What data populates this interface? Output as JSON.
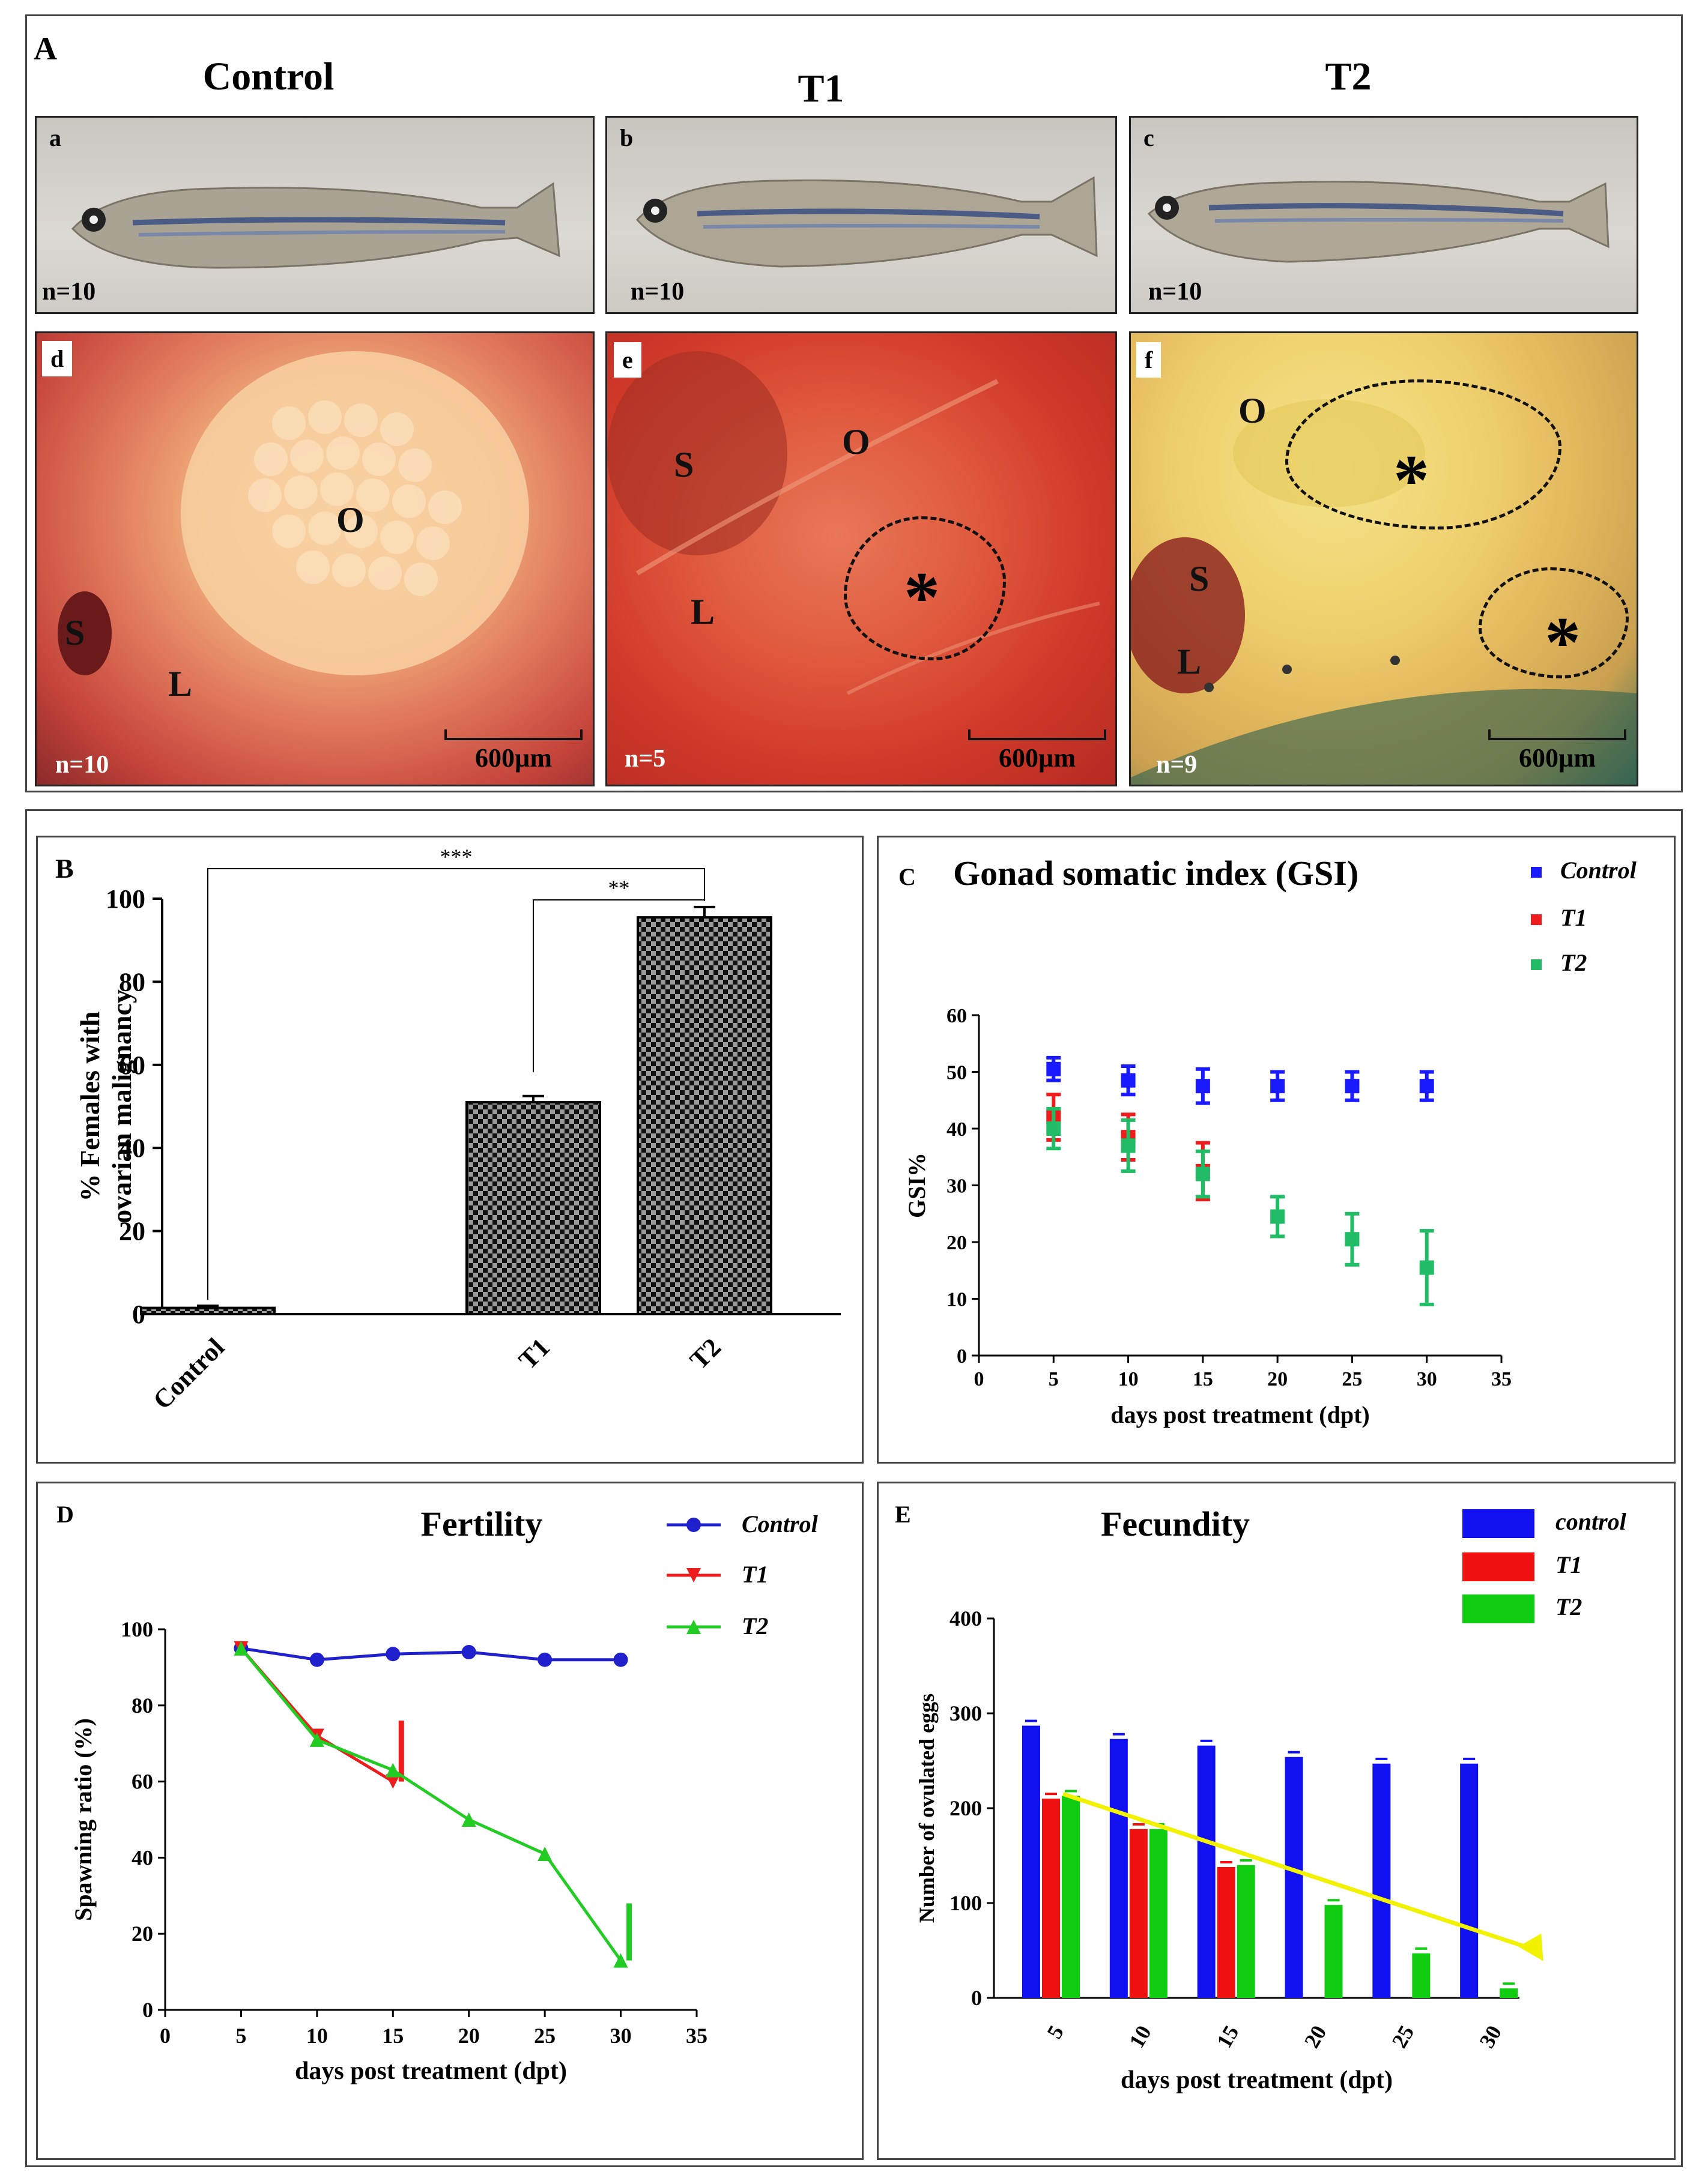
{
  "panelA": {
    "letter": "A",
    "columns": [
      "Control",
      "T1",
      "T2"
    ],
    "fish": [
      {
        "tag": "a",
        "n": "n=10"
      },
      {
        "tag": "b",
        "n": "n=10"
      },
      {
        "tag": "c",
        "n": "n=10"
      }
    ],
    "dissections": [
      {
        "tag": "d",
        "n": "n=10",
        "labels": [
          "O",
          "S",
          "L"
        ],
        "scale": "600µm"
      },
      {
        "tag": "e",
        "n": "n=5",
        "labels": [
          "S",
          "O",
          "L"
        ],
        "lesion": "*",
        "scale": "600µm"
      },
      {
        "tag": "f",
        "n": "n=9",
        "labels": [
          "O",
          "S",
          "L"
        ],
        "lesion": "*",
        "scale": "600µm"
      }
    ]
  },
  "chart_data": [
    {
      "panel": "B",
      "type": "bar",
      "ylabel": "% Females with ovarian malignancy",
      "ylabel_lines": [
        "% Females with",
        "ovarian malignancy"
      ],
      "categories": [
        "Control",
        "T1",
        "T2"
      ],
      "values": [
        1.5,
        51,
        95.5
      ],
      "errors": [
        0.5,
        1.5,
        2.5
      ],
      "ylim": [
        0,
        100
      ],
      "yticks": [
        "0",
        "20",
        "40",
        "60",
        "80",
        "100"
      ],
      "significance": [
        "***",
        "**"
      ]
    },
    {
      "panel": "C",
      "type": "scatter",
      "title": "Gonad somatic index (GSI)",
      "xlabel": "days post treatment  (dpt)",
      "ylabel": "GSI%",
      "xlim": [
        0,
        35
      ],
      "ylim": [
        0,
        60
      ],
      "xticks": [
        "0",
        "5",
        "10",
        "15",
        "20",
        "25",
        "30",
        "35"
      ],
      "yticks": [
        "0",
        "10",
        "20",
        "30",
        "40",
        "50",
        "60"
      ],
      "series": [
        {
          "name": "Control",
          "color": "#1a1aff",
          "x": [
            5,
            10,
            15,
            20,
            25,
            30
          ],
          "y": [
            50.5,
            48.5,
            47.5,
            47.5,
            47.5,
            47.5
          ],
          "err": [
            2,
            2.5,
            3,
            2.5,
            2.5,
            2.5
          ]
        },
        {
          "name": "T1",
          "color": "#ee1c1c",
          "x": [
            5,
            10,
            15
          ],
          "y": [
            42,
            38.5,
            32.5
          ],
          "err": [
            4,
            4,
            5
          ]
        },
        {
          "name": "T2",
          "color": "#22bb66",
          "x": [
            5,
            10,
            15,
            20,
            25,
            30
          ],
          "y": [
            40,
            37,
            32,
            24.5,
            20.5,
            15.5
          ],
          "err": [
            3.5,
            4.5,
            4,
            3.5,
            4.5,
            6.5
          ]
        }
      ]
    },
    {
      "panel": "D",
      "type": "line",
      "title": "Fertility",
      "xlabel": "days post treatment  (dpt)",
      "ylabel": "Spawning ratio (%)",
      "xlim": [
        0,
        35
      ],
      "ylim": [
        0,
        100
      ],
      "xticks": [
        "0",
        "5",
        "10",
        "15",
        "20",
        "25",
        "30",
        "35"
      ],
      "yticks": [
        "0",
        "20",
        "40",
        "60",
        "80",
        "100"
      ],
      "series": [
        {
          "name": "Control",
          "color": "#2020cc",
          "x": [
            5,
            10,
            15,
            20,
            25,
            30
          ],
          "y": [
            95,
            92,
            93.5,
            94,
            92,
            92
          ]
        },
        {
          "name": "T1",
          "color": "#ee1c1c",
          "x": [
            5,
            10,
            15
          ],
          "y": [
            95,
            72,
            60
          ],
          "err_top": [
            null,
            null,
            76
          ]
        },
        {
          "name": "T2",
          "color": "#22cc22",
          "x": [
            5,
            10,
            15,
            20,
            25,
            30
          ],
          "y": [
            95,
            71,
            63,
            50,
            41,
            13
          ],
          "err_top": [
            null,
            null,
            null,
            null,
            null,
            28
          ]
        }
      ]
    },
    {
      "panel": "E",
      "type": "bar",
      "title": "Fecundity",
      "xlabel": "days post treatment  (dpt)",
      "ylabel": "Number of ovulated eggs",
      "categories": [
        "5",
        "10",
        "15",
        "20",
        "25",
        "30"
      ],
      "ylim": [
        0,
        400
      ],
      "yticks": [
        "0",
        "100",
        "200",
        "300",
        "400"
      ],
      "series": [
        {
          "name": "control",
          "color": "#1010f0",
          "values": [
            287,
            273,
            266,
            254,
            247,
            247
          ]
        },
        {
          "name": "T1",
          "color": "#f01010",
          "values": [
            210,
            178,
            138,
            null,
            null,
            null
          ]
        },
        {
          "name": "T2",
          "color": "#10cc10",
          "values": [
            213,
            178,
            140,
            98,
            47,
            10
          ]
        }
      ],
      "trend_color": "#f2f200"
    }
  ]
}
